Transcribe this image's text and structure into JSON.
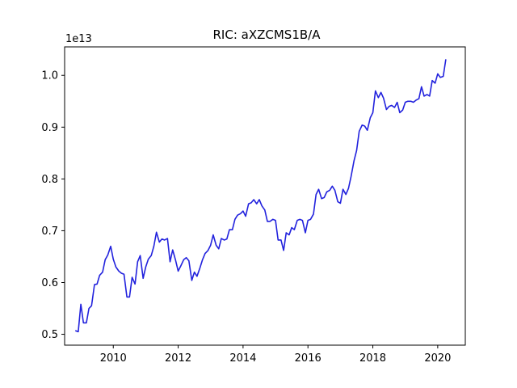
{
  "chart_data": {
    "type": "line",
    "title": "RIC: aXZCMS1B/A",
    "xlabel": "",
    "ylabel": "",
    "y_offset_label": "1e13",
    "xlim": [
      2008.5,
      2020.85
    ],
    "ylim": [
      4790000000000.0,
      10550000000000.0
    ],
    "x_ticks": [
      2010,
      2012,
      2014,
      2016,
      2018,
      2020
    ],
    "x_tick_labels": [
      "2010",
      "2012",
      "2014",
      "2016",
      "2018",
      "2020"
    ],
    "y_ticks": [
      5000000000000.0,
      6000000000000.0,
      7000000000000.0,
      8000000000000.0,
      9000000000000.0,
      10000000000000.0
    ],
    "y_tick_labels": [
      "0.5",
      "0.6",
      "0.7",
      "0.8",
      "0.9",
      "1.0"
    ],
    "grid": false,
    "legend": "none",
    "line_color": "#2222dd",
    "series": [
      {
        "x": [
          2008.83,
          2008.92,
          2009.0,
          2009.08,
          2009.17,
          2009.25,
          2009.33,
          2009.42,
          2009.5,
          2009.58,
          2009.67,
          2009.75,
          2009.83,
          2009.92,
          2010.0,
          2010.08,
          2010.17,
          2010.25,
          2010.33,
          2010.42,
          2010.5,
          2010.58,
          2010.67,
          2010.75,
          2010.83,
          2010.92,
          2011.0,
          2011.08,
          2011.17,
          2011.25,
          2011.33,
          2011.42,
          2011.5,
          2011.58,
          2011.67,
          2011.75,
          2011.83,
          2011.92,
          2012.0,
          2012.08,
          2012.17,
          2012.25,
          2012.33,
          2012.42,
          2012.5,
          2012.58,
          2012.67,
          2012.75,
          2012.83,
          2012.92,
          2013.0,
          2013.08,
          2013.17,
          2013.25,
          2013.33,
          2013.42,
          2013.5,
          2013.58,
          2013.67,
          2013.75,
          2013.83,
          2013.92,
          2014.0,
          2014.08,
          2014.17,
          2014.25,
          2014.33,
          2014.42,
          2014.5,
          2014.58,
          2014.67,
          2014.75,
          2014.83,
          2014.92,
          2015.0,
          2015.08,
          2015.17,
          2015.25,
          2015.33,
          2015.42,
          2015.5,
          2015.58,
          2015.67,
          2015.75,
          2015.83,
          2015.92,
          2016.0,
          2016.08,
          2016.17,
          2016.25,
          2016.33,
          2016.42,
          2016.5,
          2016.58,
          2016.67,
          2016.75,
          2016.83,
          2016.92,
          2017.0,
          2017.08,
          2017.17,
          2017.25,
          2017.33,
          2017.42,
          2017.5,
          2017.58,
          2017.67,
          2017.75,
          2017.83,
          2017.92,
          2018.0,
          2018.08,
          2018.17,
          2018.25,
          2018.33,
          2018.42,
          2018.5,
          2018.58,
          2018.67,
          2018.75,
          2018.83,
          2018.92,
          2019.0,
          2019.08,
          2019.17,
          2019.25,
          2019.33,
          2019.42,
          2019.5,
          2019.58,
          2019.67,
          2019.75,
          2019.83,
          2019.92,
          2020.0,
          2020.08,
          2020.17,
          2020.25
        ],
        "y": [
          5070000000000.0,
          5050000000000.0,
          5580000000000.0,
          5220000000000.0,
          5220000000000.0,
          5500000000000.0,
          5550000000000.0,
          5960000000000.0,
          5970000000000.0,
          6140000000000.0,
          6200000000000.0,
          6440000000000.0,
          6530000000000.0,
          6700000000000.0,
          6450000000000.0,
          6300000000000.0,
          6220000000000.0,
          6180000000000.0,
          6160000000000.0,
          5720000000000.0,
          5720000000000.0,
          6100000000000.0,
          5970000000000.0,
          6400000000000.0,
          6520000000000.0,
          6080000000000.0,
          6300000000000.0,
          6450000000000.0,
          6520000000000.0,
          6700000000000.0,
          6970000000000.0,
          6780000000000.0,
          6840000000000.0,
          6820000000000.0,
          6850000000000.0,
          6400000000000.0,
          6630000000000.0,
          6430000000000.0,
          6220000000000.0,
          6320000000000.0,
          6440000000000.0,
          6480000000000.0,
          6420000000000.0,
          6040000000000.0,
          6200000000000.0,
          6120000000000.0,
          6280000000000.0,
          6440000000000.0,
          6560000000000.0,
          6620000000000.0,
          6720000000000.0,
          6920000000000.0,
          6720000000000.0,
          6650000000000.0,
          6850000000000.0,
          6820000000000.0,
          6840000000000.0,
          7020000000000.0,
          7020000000000.0,
          7220000000000.0,
          7300000000000.0,
          7330000000000.0,
          7380000000000.0,
          7280000000000.0,
          7520000000000.0,
          7540000000000.0,
          7600000000000.0,
          7520000000000.0,
          7600000000000.0,
          7480000000000.0,
          7400000000000.0,
          7180000000000.0,
          7180000000000.0,
          7220000000000.0,
          7200000000000.0,
          6820000000000.0,
          6820000000000.0,
          6620000000000.0,
          6960000000000.0,
          6920000000000.0,
          7060000000000.0,
          7020000000000.0,
          7200000000000.0,
          7220000000000.0,
          7200000000000.0,
          6960000000000.0,
          7200000000000.0,
          7220000000000.0,
          7320000000000.0,
          7700000000000.0,
          7800000000000.0,
          7620000000000.0,
          7640000000000.0,
          7750000000000.0,
          7780000000000.0,
          7860000000000.0,
          7780000000000.0,
          7560000000000.0,
          7530000000000.0,
          7800000000000.0,
          7700000000000.0,
          7820000000000.0,
          8050000000000.0,
          8350000000000.0,
          8550000000000.0,
          8920000000000.0,
          9040000000000.0,
          9020000000000.0,
          8940000000000.0,
          9180000000000.0,
          9280000000000.0,
          9700000000000.0,
          9570000000000.0,
          9670000000000.0,
          9560000000000.0,
          9340000000000.0,
          9400000000000.0,
          9420000000000.0,
          9380000000000.0,
          9480000000000.0,
          9280000000000.0,
          9330000000000.0,
          9480000000000.0,
          9500000000000.0,
          9500000000000.0,
          9480000000000.0,
          9520000000000.0,
          9550000000000.0,
          9780000000000.0,
          9600000000000.0,
          9630000000000.0,
          9600000000000.0,
          9900000000000.0,
          9850000000000.0,
          10030000000000.0,
          9960000000000.0,
          9980000000000.0,
          10310000000000.0
        ]
      }
    ]
  }
}
